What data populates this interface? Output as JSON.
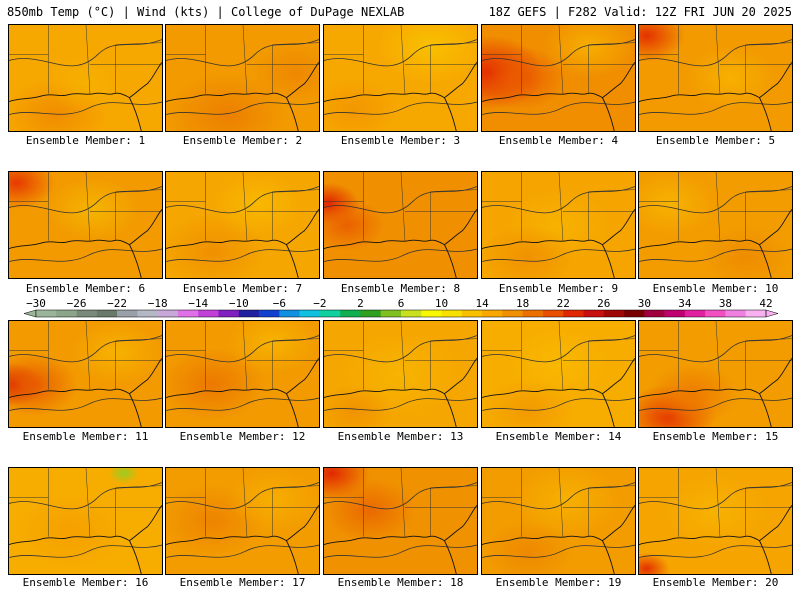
{
  "header": {
    "left": "850mb Temp (°C) | Wind (kts) | College of DuPage NEXLAB",
    "right": "18Z GEFS | F282 Valid: 12Z FRI JUN 20 2025"
  },
  "panels": [
    {
      "label": "Ensemble Member: 1",
      "base": "#f7a800",
      "hot": [
        [
          0.3,
          0.85,
          0.35,
          "#f08c00"
        ],
        [
          0.5,
          0.55,
          0.25,
          "#f5b000"
        ]
      ]
    },
    {
      "label": "Ensemble Member: 2",
      "base": "#f29a00",
      "hot": [
        [
          0.4,
          0.85,
          0.4,
          "#ec7f00"
        ],
        [
          0.85,
          0.45,
          0.3,
          "#ee8800"
        ]
      ]
    },
    {
      "label": "Ensemble Member: 3",
      "base": "#f7a800",
      "hot": [
        [
          0.2,
          0.8,
          0.3,
          "#f29600"
        ],
        [
          0.7,
          0.2,
          0.35,
          "#f9c000"
        ]
      ]
    },
    {
      "label": "Ensemble Member: 4",
      "base": "#f08e00",
      "hot": [
        [
          0.05,
          0.45,
          0.35,
          "#e22200"
        ],
        [
          0.25,
          0.5,
          0.3,
          "#ea5a00"
        ],
        [
          0.7,
          0.2,
          0.3,
          "#f7ae00"
        ]
      ]
    },
    {
      "label": "Ensemble Member: 5",
      "base": "#f29a00",
      "hot": [
        [
          0.05,
          0.1,
          0.25,
          "#e43200"
        ],
        [
          0.6,
          0.5,
          0.3,
          "#f7b000"
        ]
      ]
    },
    {
      "label": "Ensemble Member: 6",
      "base": "#f29a00",
      "hot": [
        [
          0.05,
          0.1,
          0.25,
          "#e63a00"
        ],
        [
          0.55,
          0.35,
          0.3,
          "#f5b400"
        ]
      ]
    },
    {
      "label": "Ensemble Member: 7",
      "base": "#f5a600",
      "hot": [
        [
          0.3,
          0.75,
          0.35,
          "#f09000"
        ],
        [
          0.6,
          0.3,
          0.3,
          "#f8b800"
        ]
      ]
    },
    {
      "label": "Ensemble Member: 8",
      "base": "#f09000",
      "hot": [
        [
          0.03,
          0.3,
          0.2,
          "#e02000"
        ],
        [
          0.15,
          0.5,
          0.25,
          "#ea6000"
        ]
      ]
    },
    {
      "label": "Ensemble Member: 9",
      "base": "#f5a400",
      "hot": [
        [
          0.5,
          0.5,
          0.35,
          "#f7b200"
        ],
        [
          0.3,
          0.8,
          0.3,
          "#f09200"
        ]
      ]
    },
    {
      "label": "Ensemble Member: 10",
      "base": "#f29c00",
      "hot": [
        [
          0.2,
          0.3,
          0.3,
          "#f7b200"
        ],
        [
          0.7,
          0.8,
          0.3,
          "#ee8c00"
        ]
      ]
    },
    {
      "label": "Ensemble Member: 11",
      "base": "#f29a00",
      "hot": [
        [
          0.03,
          0.6,
          0.2,
          "#d61800"
        ],
        [
          0.15,
          0.6,
          0.3,
          "#e85a00"
        ],
        [
          0.7,
          0.3,
          0.3,
          "#f7b200"
        ]
      ]
    },
    {
      "label": "Ensemble Member: 12",
      "base": "#f29a00",
      "hot": [
        [
          0.3,
          0.6,
          0.35,
          "#ec7800"
        ],
        [
          0.7,
          0.2,
          0.3,
          "#f7b200"
        ]
      ]
    },
    {
      "label": "Ensemble Member: 13",
      "base": "#f5a600",
      "hot": [
        [
          0.5,
          0.5,
          0.4,
          "#f7b400"
        ],
        [
          0.2,
          0.85,
          0.25,
          "#f09200"
        ]
      ]
    },
    {
      "label": "Ensemble Member: 14",
      "base": "#f7ac00",
      "hot": [
        [
          0.5,
          0.4,
          0.35,
          "#f8b800"
        ],
        [
          0.3,
          0.85,
          0.3,
          "#f29a00"
        ]
      ]
    },
    {
      "label": "Ensemble Member: 15",
      "base": "#f29c00",
      "hot": [
        [
          0.2,
          0.9,
          0.3,
          "#e43400"
        ],
        [
          0.35,
          0.7,
          0.3,
          "#ee7a00"
        ]
      ]
    },
    {
      "label": "Ensemble Member: 16",
      "base": "#f7ac00",
      "hot": [
        [
          0.75,
          0.05,
          0.1,
          "#9ccc20"
        ],
        [
          0.4,
          0.6,
          0.35,
          "#f5a000"
        ]
      ]
    },
    {
      "label": "Ensemble Member: 17",
      "base": "#f29c00",
      "hot": [
        [
          0.3,
          0.5,
          0.35,
          "#ee8400"
        ],
        [
          0.7,
          0.3,
          0.3,
          "#f7ae00"
        ]
      ]
    },
    {
      "label": "Ensemble Member: 18",
      "base": "#f09200",
      "hot": [
        [
          0.05,
          0.05,
          0.25,
          "#e02800"
        ],
        [
          0.3,
          0.4,
          0.3,
          "#ea6800"
        ]
      ]
    },
    {
      "label": "Ensemble Member: 19",
      "base": "#f29c00",
      "hot": [
        [
          0.55,
          0.3,
          0.35,
          "#f7b000"
        ],
        [
          0.3,
          0.8,
          0.3,
          "#ee8800"
        ]
      ]
    },
    {
      "label": "Ensemble Member: 20",
      "base": "#f5a400",
      "hot": [
        [
          0.05,
          0.95,
          0.15,
          "#e43000"
        ],
        [
          0.5,
          0.4,
          0.35,
          "#f7b200"
        ]
      ]
    }
  ],
  "colorbar": {
    "labels": [
      "-30",
      "-26",
      "-22",
      "-18",
      "-14",
      "-10",
      "-6",
      "-2",
      "2",
      "6",
      "10",
      "14",
      "18",
      "22",
      "26",
      "30",
      "34",
      "38",
      "42"
    ],
    "colors": [
      "#9ab59a",
      "#8aa58a",
      "#7a8a7a",
      "#6a7a6a",
      "#9aa0a8",
      "#b4b8c4",
      "#c8a8d8",
      "#e070e8",
      "#c040d8",
      "#8020c0",
      "#2020a0",
      "#1040d0",
      "#1090e0",
      "#10c0e0",
      "#10d0a0",
      "#10b050",
      "#30a020",
      "#80c020",
      "#c8e020",
      "#f8f800",
      "#f8e000",
      "#f8c000",
      "#f8a800",
      "#f09000",
      "#ec7000",
      "#e85000",
      "#e02800",
      "#c81010",
      "#a00808",
      "#780000",
      "#a00040",
      "#c00070",
      "#e020a0",
      "#f050c0",
      "#f080e0",
      "#f8b0f0"
    ]
  }
}
